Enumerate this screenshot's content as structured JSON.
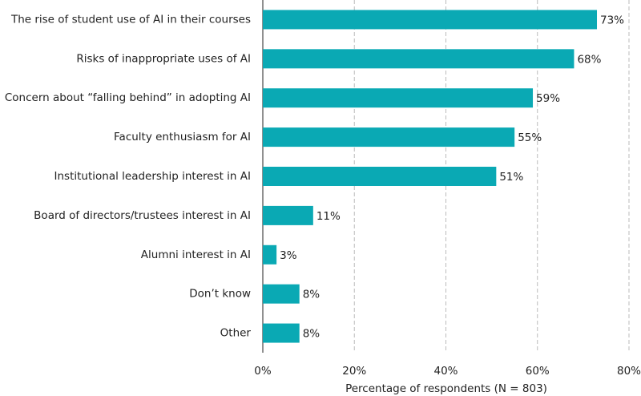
{
  "chart_data": {
    "type": "hbar",
    "categories": [
      "The rise of student use of AI in their courses",
      "Risks of inappropriate uses of AI",
      "Concern about “falling behind” in adopting AI",
      "Faculty enthusiasm for AI",
      "Institutional leadership interest in AI",
      "Board of directors/trustees interest in AI",
      "Alumni interest in AI",
      "Don’t know",
      "Other"
    ],
    "values": [
      73,
      68,
      59,
      55,
      51,
      11,
      3,
      8,
      8
    ],
    "value_labels": [
      "73%",
      "68%",
      "59%",
      "55%",
      "51%",
      "11%",
      "3%",
      "8%",
      "8%"
    ],
    "color": "#0aa9b4",
    "xlim": [
      0,
      80
    ],
    "xticks": [
      {
        "value": 0,
        "label": "0%"
      },
      {
        "value": 20,
        "label": "20%"
      },
      {
        "value": 40,
        "label": "40%"
      },
      {
        "value": 60,
        "label": "60%"
      },
      {
        "value": 80,
        "label": "80%"
      }
    ],
    "xlabel": "Percentage of respondents (N = 803)",
    "grid": true
  }
}
